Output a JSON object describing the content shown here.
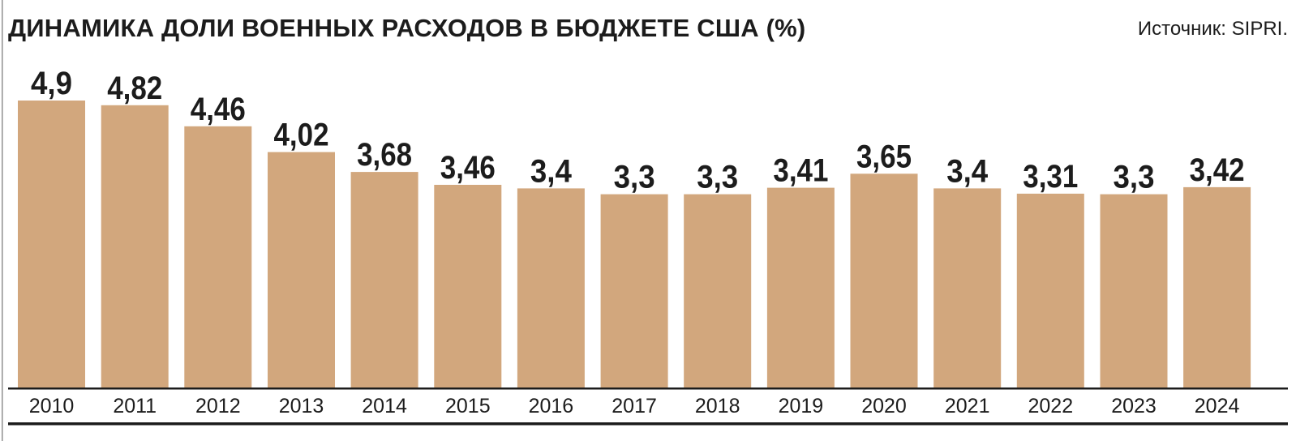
{
  "chart_data": {
    "type": "bar",
    "title": "ДИНАМИКА ДОЛИ ВОЕННЫХ РАСХОДОВ В БЮДЖЕТЕ США (%)",
    "source": "Источник: SIPRI.",
    "categories": [
      "2010",
      "2011",
      "2012",
      "2013",
      "2014",
      "2015",
      "2016",
      "2017",
      "2018",
      "2019",
      "2020",
      "2021",
      "2022",
      "2023",
      "2024"
    ],
    "values": [
      4.9,
      4.82,
      4.46,
      4.02,
      3.68,
      3.46,
      3.4,
      3.3,
      3.3,
      3.41,
      3.65,
      3.4,
      3.31,
      3.3,
      3.42
    ],
    "value_labels": [
      "4,9",
      "4,82",
      "4,46",
      "4,02",
      "3,68",
      "3,46",
      "3,4",
      "3,3",
      "3,3",
      "3,41",
      "3,65",
      "3,4",
      "3,31",
      "3,3",
      "3,42"
    ],
    "ylim": [
      0,
      4.9
    ],
    "grid": false,
    "bar_color": "#d2a77d",
    "axis_color": "#1c1c1c"
  }
}
